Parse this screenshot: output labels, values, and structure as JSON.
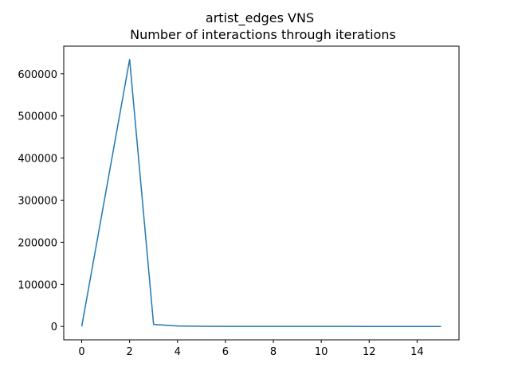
{
  "chart_data": {
    "type": "line",
    "title": "artist_edges VNS",
    "subtitle": "Number of interactions through iterations",
    "xlabel": "",
    "ylabel": "",
    "x": [
      0,
      1,
      2,
      3,
      4,
      5,
      6,
      7,
      8,
      9,
      10,
      11,
      12,
      13,
      14,
      15
    ],
    "series": [
      {
        "values": [
          0,
          317000,
          634000,
          5000,
          1200,
          500,
          300,
          200,
          150,
          100,
          100,
          80,
          60,
          50,
          40,
          30
        ]
      }
    ],
    "xlim": [
      -0.75,
      15.75
    ],
    "ylim": [
      -31700,
      665700
    ],
    "xticks": [
      0,
      2,
      4,
      6,
      8,
      10,
      12,
      14
    ],
    "yticks": [
      0,
      100000,
      200000,
      300000,
      400000,
      500000,
      600000
    ],
    "xtick_labels": [
      "0",
      "2",
      "4",
      "6",
      "8",
      "10",
      "12",
      "14"
    ],
    "ytick_labels": [
      "0",
      "100000",
      "200000",
      "300000",
      "400000",
      "500000",
      "600000"
    ],
    "grid": false,
    "line_color": "#1f77b4"
  }
}
